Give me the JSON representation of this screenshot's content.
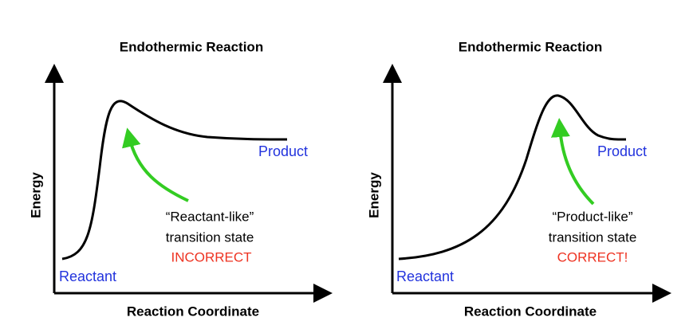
{
  "panels": [
    {
      "title": "Endothermic Reaction",
      "y_label": "Energy",
      "x_label": "Reaction Coordinate",
      "start_label": "Reactant",
      "end_label": "Product",
      "annotation": [
        "“Reactant-like”",
        "transition state"
      ],
      "verdict": "INCORRECT"
    },
    {
      "title": "Endothermic Reaction",
      "y_label": "Energy",
      "x_label": "Reaction Coordinate",
      "start_label": "Reactant",
      "end_label": "Product",
      "annotation": [
        "“Product-like”",
        "transition state"
      ],
      "verdict": "CORRECT!"
    }
  ]
}
